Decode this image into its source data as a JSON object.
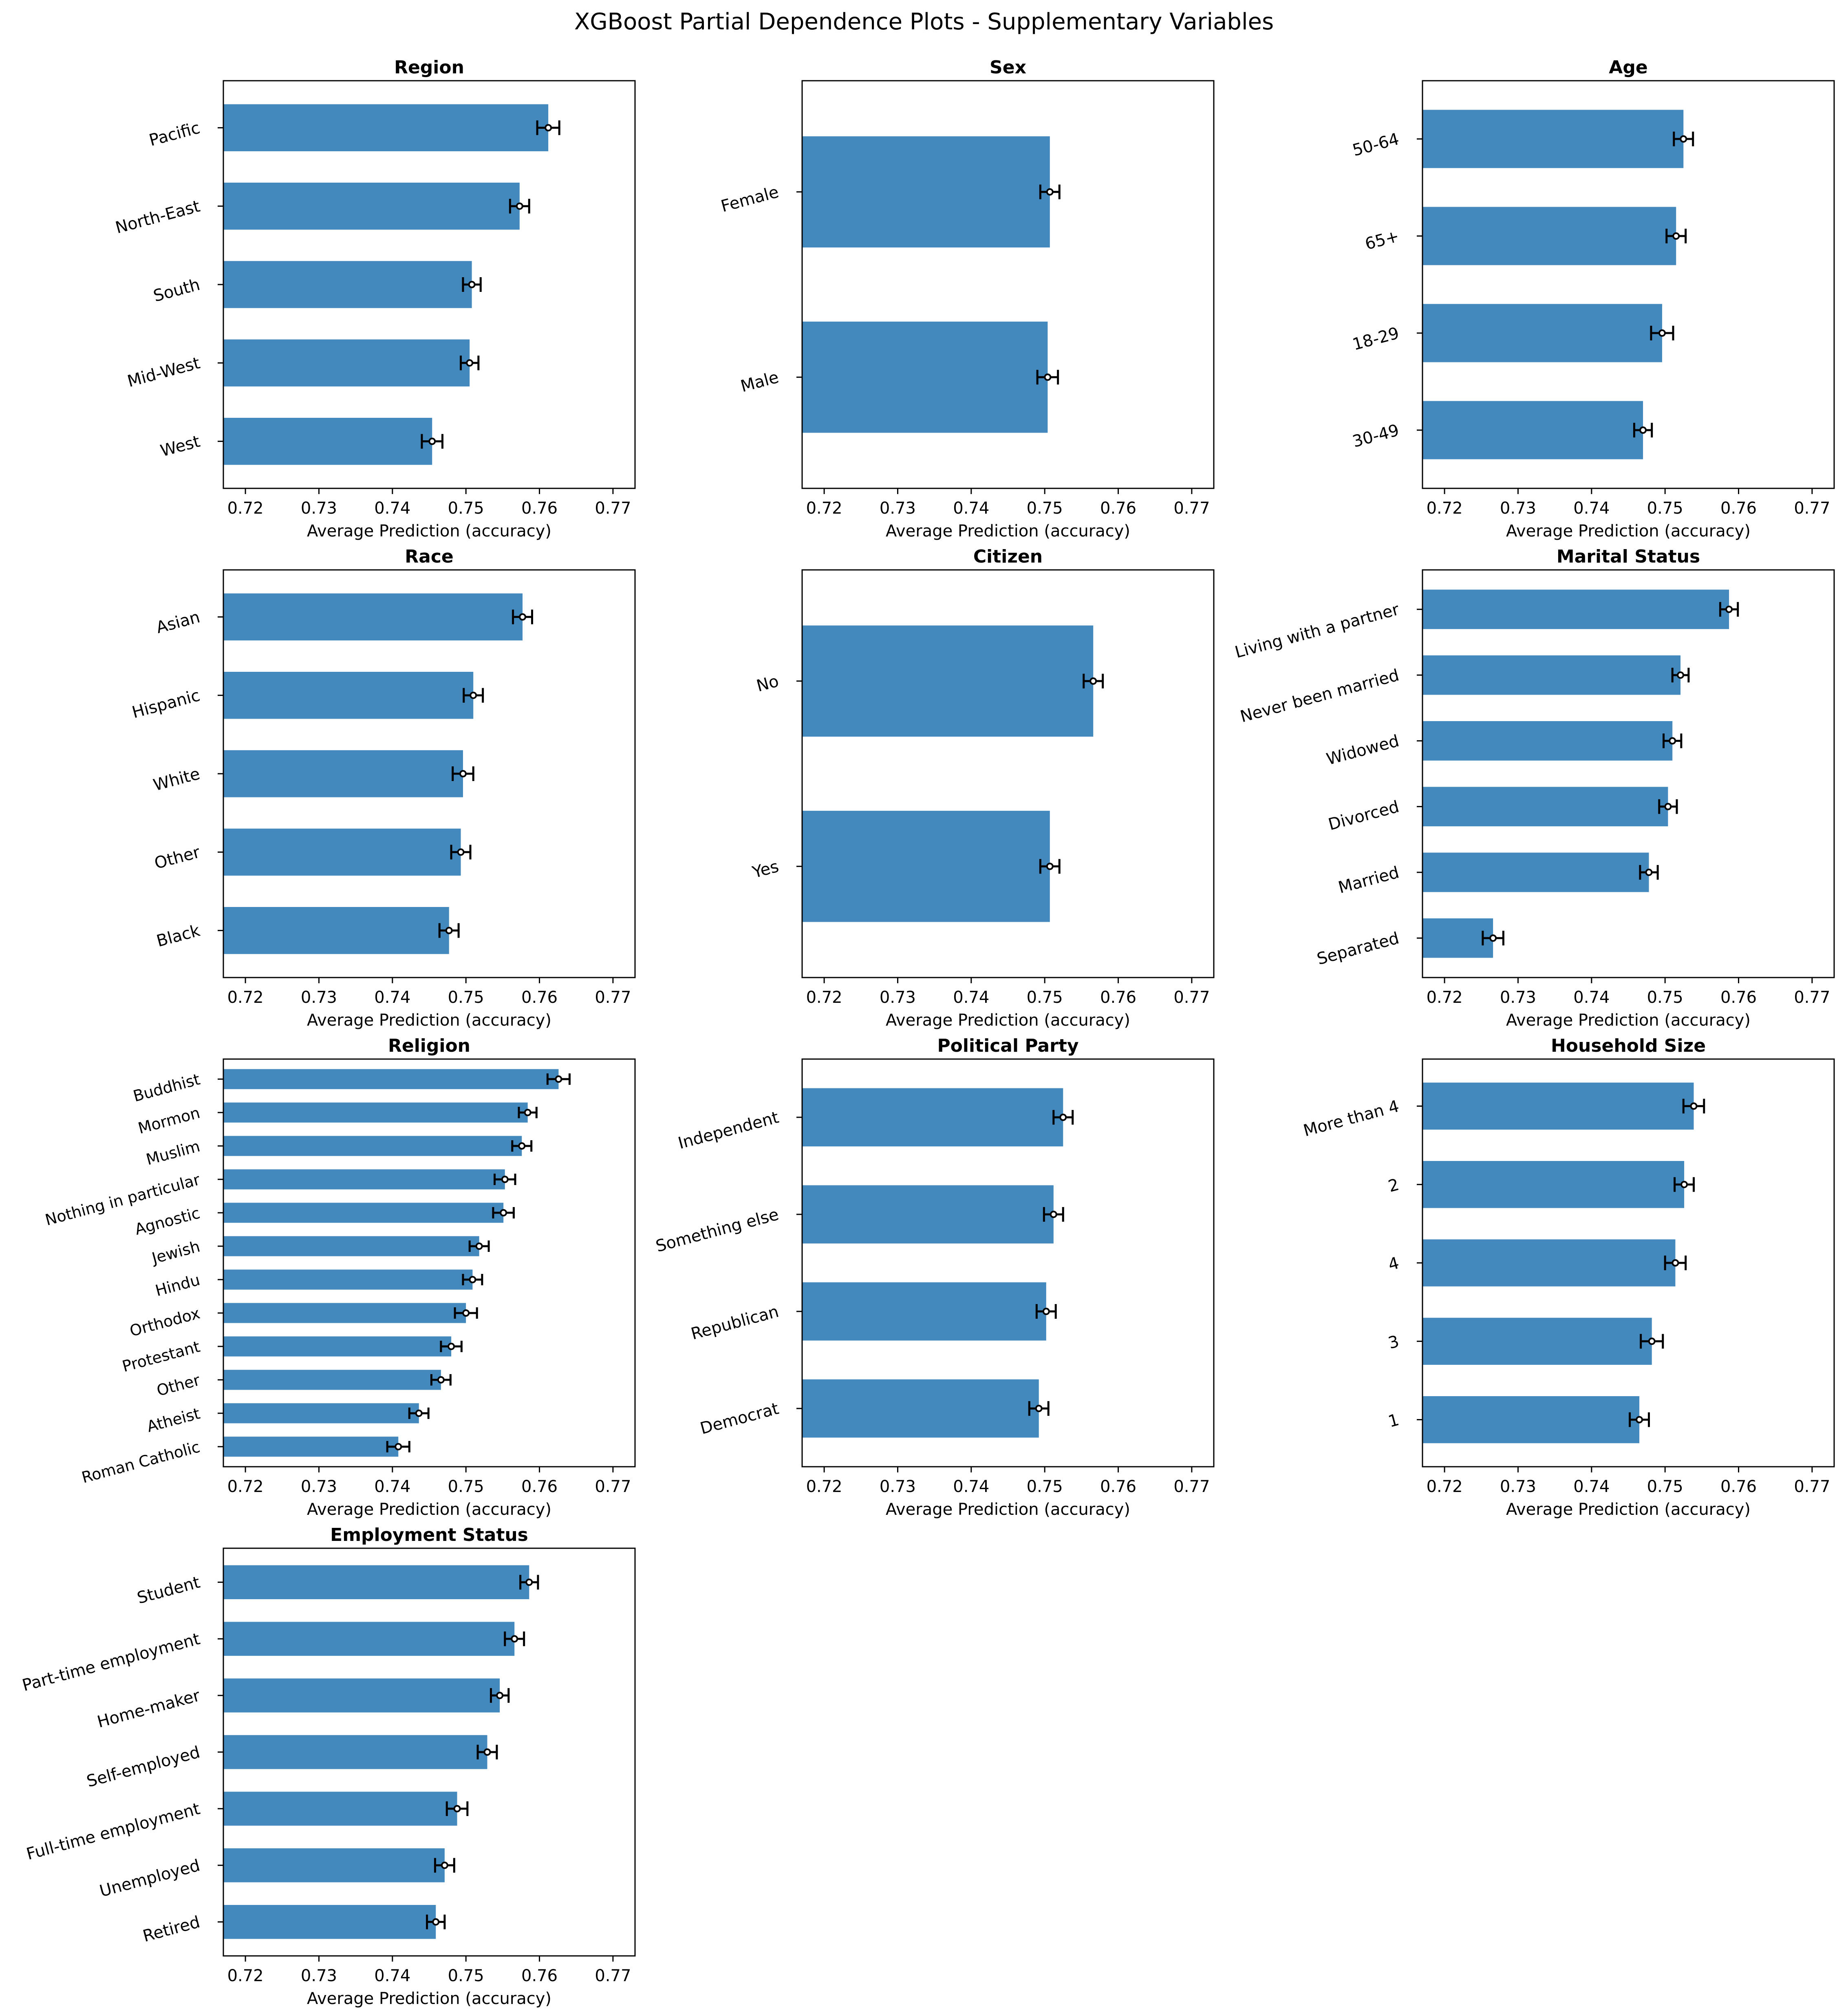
{
  "chart_data": {
    "type": "bar",
    "orientation": "horizontal",
    "title": "XGBoost Partial Dependence Plots - Supplementary Variables",
    "xlabel": "Average Prediction (accuracy)",
    "xlim": [
      0.717,
      0.773
    ],
    "xticks": [
      "0.72",
      "0.73",
      "0.74",
      "0.75",
      "0.76",
      "0.77"
    ],
    "xtick_values": [
      0.72,
      0.73,
      0.74,
      0.75,
      0.76,
      0.77
    ],
    "bar_color": "#4389bd",
    "panels": [
      {
        "title": "Region",
        "categories": [
          "Pacific",
          "North-East",
          "South",
          "Mid-West",
          "West"
        ],
        "values": [
          0.7612,
          0.7573,
          0.7508,
          0.7505,
          0.7454
        ],
        "errors": [
          0.0015,
          0.0013,
          0.0012,
          0.0012,
          0.0014
        ]
      },
      {
        "title": "Sex",
        "categories": [
          "Female",
          "Male"
        ],
        "values": [
          0.7507,
          0.7504
        ],
        "errors": [
          0.0013,
          0.0014
        ]
      },
      {
        "title": "Age",
        "categories": [
          "50-64",
          "65+",
          "18-29",
          "30-49"
        ],
        "values": [
          0.7525,
          0.7515,
          0.7496,
          0.747
        ],
        "errors": [
          0.0013,
          0.0013,
          0.0015,
          0.0012
        ]
      },
      {
        "title": "Race",
        "categories": [
          "Asian",
          "Hispanic",
          "White",
          "Other",
          "Black"
        ],
        "values": [
          0.7577,
          0.751,
          0.7496,
          0.7493,
          0.7477
        ],
        "errors": [
          0.0013,
          0.0013,
          0.0014,
          0.0013,
          0.0013
        ]
      },
      {
        "title": "Citizen",
        "categories": [
          "No",
          "Yes"
        ],
        "values": [
          0.7566,
          0.7507
        ],
        "errors": [
          0.0013,
          0.0013
        ]
      },
      {
        "title": "Marital Status",
        "categories": [
          "Living with a partner",
          "Never been married",
          "Widowed",
          "Divorced",
          "Married",
          "Separated"
        ],
        "values": [
          0.7587,
          0.7521,
          0.751,
          0.7504,
          0.7478,
          0.7266
        ],
        "errors": [
          0.0012,
          0.0011,
          0.0012,
          0.0012,
          0.0012,
          0.0014
        ]
      },
      {
        "title": "Religion",
        "categories": [
          "Buddhist",
          "Mormon",
          "Muslim",
          "Nothing in particular",
          "Agnostic",
          "Jewish",
          "Hindu",
          "Orthodox",
          "Protestant",
          "Other",
          "Atheist",
          "Roman Catholic"
        ],
        "values": [
          0.7626,
          0.7584,
          0.7576,
          0.7553,
          0.7551,
          0.7518,
          0.7509,
          0.75,
          0.748,
          0.7466,
          0.7436,
          0.7408
        ],
        "errors": [
          0.0015,
          0.0012,
          0.0013,
          0.0014,
          0.0014,
          0.0013,
          0.0013,
          0.0015,
          0.0014,
          0.0013,
          0.0013,
          0.0015
        ]
      },
      {
        "title": "Political Party",
        "categories": [
          "Independent",
          "Something else",
          "Republican",
          "Democrat"
        ],
        "values": [
          0.7525,
          0.7512,
          0.7502,
          0.7492
        ],
        "errors": [
          0.0013,
          0.0013,
          0.0013,
          0.0013
        ]
      },
      {
        "title": "Household Size",
        "categories": [
          "More than 4",
          "2",
          "4",
          "3",
          "1"
        ],
        "values": [
          0.7539,
          0.7526,
          0.7514,
          0.7482,
          0.7465
        ],
        "errors": [
          0.0014,
          0.0013,
          0.0014,
          0.0015,
          0.0013
        ]
      },
      {
        "title": "Employment Status",
        "categories": [
          "Student",
          "Part-time employment",
          "Home-maker",
          "Self-employed",
          "Full-time employment",
          "Unemployed",
          "Retired"
        ],
        "values": [
          0.7586,
          0.7566,
          0.7546,
          0.7529,
          0.7488,
          0.7471,
          0.7459
        ],
        "errors": [
          0.0012,
          0.0013,
          0.0012,
          0.0013,
          0.0014,
          0.0013,
          0.0012
        ]
      }
    ]
  }
}
